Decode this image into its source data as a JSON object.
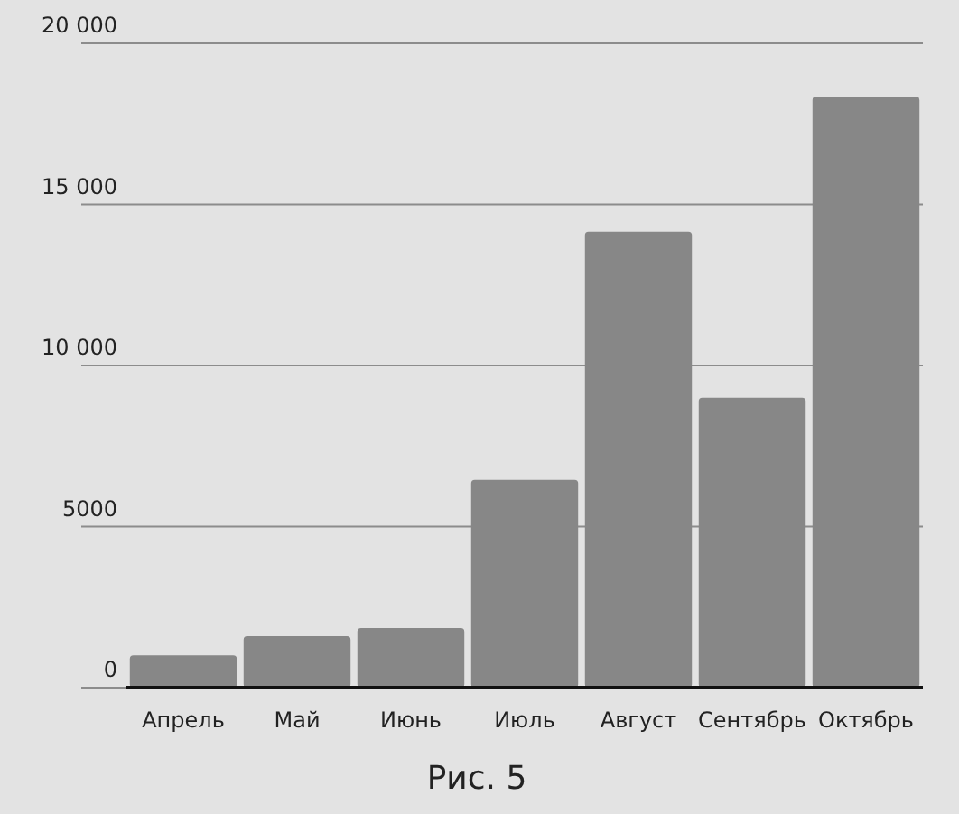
{
  "chart_data": {
    "type": "bar",
    "categories": [
      "Апрель",
      "Май",
      "Июнь",
      "Июль",
      "Август",
      "Сентябрь",
      "Октябрь"
    ],
    "values": [
      1000,
      1600,
      1850,
      6450,
      14150,
      9000,
      18350
    ],
    "color": "#878787",
    "ylim": [
      0,
      20000
    ],
    "yticks": [
      0,
      5000,
      {
        "value": 10000,
        "label": "10 000"
      },
      {
        "value": 15000,
        "label": "15 000"
      },
      {
        "value": 20000,
        "label": "20 000"
      }
    ],
    "grid": "y",
    "annotations": [
      "Рис. 5"
    ]
  }
}
